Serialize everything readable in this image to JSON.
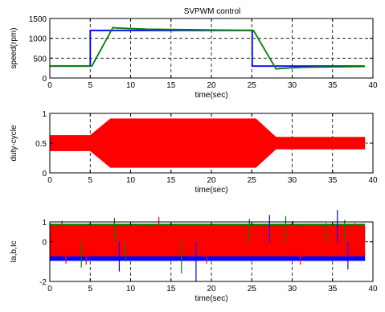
{
  "figure": {
    "title": "SVPWM control"
  },
  "chart_data": [
    {
      "type": "line",
      "title": "SVPWM control",
      "xlabel": "time(sec)",
      "ylabel": "speed(rpm)",
      "xlim": [
        0,
        40
      ],
      "ylim": [
        0,
        1500
      ],
      "xticks": [
        0,
        5,
        10,
        15,
        20,
        25,
        30,
        35,
        40
      ],
      "yticks": [
        0,
        500,
        1000,
        1500
      ],
      "grid": "dashed",
      "series": [
        {
          "color": "#0000ff",
          "x": [
            0,
            5,
            5,
            25.05,
            25.05,
            39
          ],
          "y": [
            300,
            300,
            1200,
            1200,
            300,
            300
          ]
        },
        {
          "color": "#008000",
          "x": [
            0,
            5.2,
            7.8,
            8.2,
            12,
            20,
            25.2,
            28,
            28.6,
            31,
            39
          ],
          "y": [
            300,
            300,
            1270,
            1260,
            1230,
            1210,
            1200,
            230,
            240,
            270,
            290
          ]
        }
      ]
    },
    {
      "type": "area",
      "xlabel": "time(sec)",
      "ylabel": "duty-cycle",
      "xlim": [
        0,
        40
      ],
      "ylim": [
        0,
        1
      ],
      "xticks": [
        0,
        5,
        10,
        15,
        20,
        25,
        30,
        35,
        40
      ],
      "yticks": [
        0,
        0.5,
        1
      ],
      "grid": "dashed",
      "series": [
        {
          "color": "#ff0000",
          "x": [
            0,
            5,
            7.5,
            25.5,
            28,
            39
          ],
          "upper": [
            0.63,
            0.63,
            0.91,
            0.91,
            0.6,
            0.6
          ],
          "lower": [
            0.37,
            0.37,
            0.09,
            0.09,
            0.4,
            0.4
          ]
        }
      ]
    },
    {
      "type": "area",
      "xlabel": "time(sec)",
      "ylabel": "Ia,b,Ic",
      "xlim": [
        0,
        40
      ],
      "ylim": [
        -2,
        1
      ],
      "xticks": [
        0,
        5,
        10,
        15,
        20,
        25,
        30,
        35,
        40
      ],
      "yticks": [
        -2,
        0,
        1
      ],
      "ytick_labels": [
        "-2",
        "0",
        "1"
      ],
      "grid": "dashed",
      "series": [
        {
          "color": "#0000ff",
          "x": [
            0,
            39
          ],
          "upper": [
            -0.55,
            -0.55
          ],
          "lower": [
            -0.95,
            -0.95
          ]
        },
        {
          "color": "#008000",
          "x": [
            0,
            39
          ],
          "upper": [
            0.9,
            0.9
          ],
          "lower": [
            0.05,
            0.05
          ]
        },
        {
          "color": "#ff0000",
          "x": [
            0,
            39
          ],
          "upper": [
            0.78,
            0.78
          ],
          "lower": [
            -0.72,
            -0.72
          ]
        }
      ],
      "spikes": [
        {
          "color": "#ff0000",
          "x": 1.5,
          "y": 1.05
        },
        {
          "color": "#ff0000",
          "x": 2.0,
          "y": -1.1
        },
        {
          "color": "#008000",
          "x": 3.9,
          "y": -1.3
        },
        {
          "color": "#ff0000",
          "x": 4.5,
          "y": -1.15
        },
        {
          "color": "#008000",
          "x": 8.0,
          "y": 1.2
        },
        {
          "color": "#0000ff",
          "x": 8.6,
          "y": -1.5
        },
        {
          "color": "#008000",
          "x": 9.4,
          "y": -1.0
        },
        {
          "color": "#ff0000",
          "x": 13.5,
          "y": 1.25
        },
        {
          "color": "#008000",
          "x": 16.3,
          "y": -1.6
        },
        {
          "color": "#0000ff",
          "x": 18.1,
          "y": -2.0
        },
        {
          "color": "#ff0000",
          "x": 19.4,
          "y": -1.1
        },
        {
          "color": "#008000",
          "x": 24.7,
          "y": 1.15
        },
        {
          "color": "#0000ff",
          "x": 27.2,
          "y": 1.35
        },
        {
          "color": "#008000",
          "x": 29.2,
          "y": 1.3
        },
        {
          "color": "#ff0000",
          "x": 30.1,
          "y": 1.05
        },
        {
          "color": "#ff0000",
          "x": 31.0,
          "y": -1.15
        },
        {
          "color": "#008000",
          "x": 34.2,
          "y": 0.95
        },
        {
          "color": "#0000ff",
          "x": 35.6,
          "y": 1.6
        },
        {
          "color": "#008000",
          "x": 36.5,
          "y": 1.1
        },
        {
          "color": "#0000ff",
          "x": 36.9,
          "y": -1.4
        },
        {
          "color": "#ff0000",
          "x": 37.8,
          "y": 0.95
        }
      ]
    }
  ]
}
